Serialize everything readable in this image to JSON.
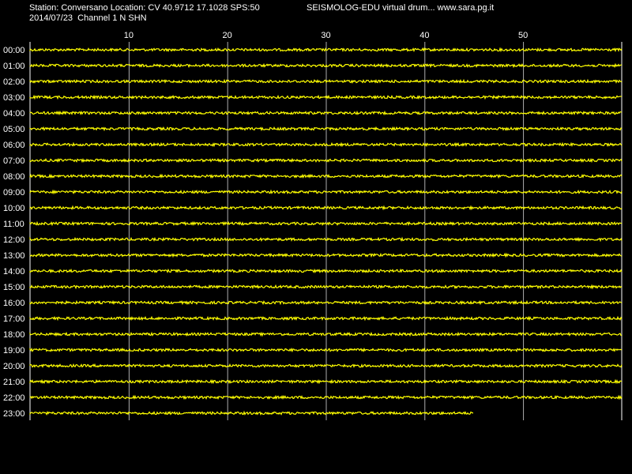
{
  "header": {
    "station_line": "Station: Conversano Location: CV 40.9712 17.1028 SPS:50",
    "date_line": "2014/07/23  Channel 1 N SHN",
    "brand_line": "SEISMOLOG-EDU virtual drum... www.sara.pg.it"
  },
  "colors": {
    "background": "#000000",
    "trace": "#ffff00",
    "grid": "#ffffff",
    "text": "#ffffff"
  },
  "chart_data": {
    "type": "line",
    "title": "",
    "xlabel": "",
    "ylabel": "",
    "x_unit": "minutes",
    "xlim": [
      0,
      60
    ],
    "x_ticks": [
      10,
      20,
      30,
      40,
      50
    ],
    "x_tick_labels": [
      "10",
      "20",
      "30",
      "40",
      "50"
    ],
    "grid": true,
    "rows": [
      {
        "label": "00:00",
        "end_minute": 60
      },
      {
        "label": "01:00",
        "end_minute": 60
      },
      {
        "label": "02:00",
        "end_minute": 60
      },
      {
        "label": "03:00",
        "end_minute": 60
      },
      {
        "label": "04:00",
        "end_minute": 60
      },
      {
        "label": "05:00",
        "end_minute": 60
      },
      {
        "label": "06:00",
        "end_minute": 60
      },
      {
        "label": "07:00",
        "end_minute": 60
      },
      {
        "label": "08:00",
        "end_minute": 60
      },
      {
        "label": "09:00",
        "end_minute": 60
      },
      {
        "label": "10:00",
        "end_minute": 60
      },
      {
        "label": "11:00",
        "end_minute": 60
      },
      {
        "label": "12:00",
        "end_minute": 60
      },
      {
        "label": "13:00",
        "end_minute": 60
      },
      {
        "label": "14:00",
        "end_minute": 60
      },
      {
        "label": "15:00",
        "end_minute": 60
      },
      {
        "label": "16:00",
        "end_minute": 60
      },
      {
        "label": "17:00",
        "end_minute": 60
      },
      {
        "label": "18:00",
        "end_minute": 60
      },
      {
        "label": "19:00",
        "end_minute": 60
      },
      {
        "label": "20:00",
        "end_minute": 60
      },
      {
        "label": "21:00",
        "end_minute": 60
      },
      {
        "label": "22:00",
        "end_minute": 60
      },
      {
        "label": "23:00",
        "end_minute": 45
      }
    ]
  }
}
